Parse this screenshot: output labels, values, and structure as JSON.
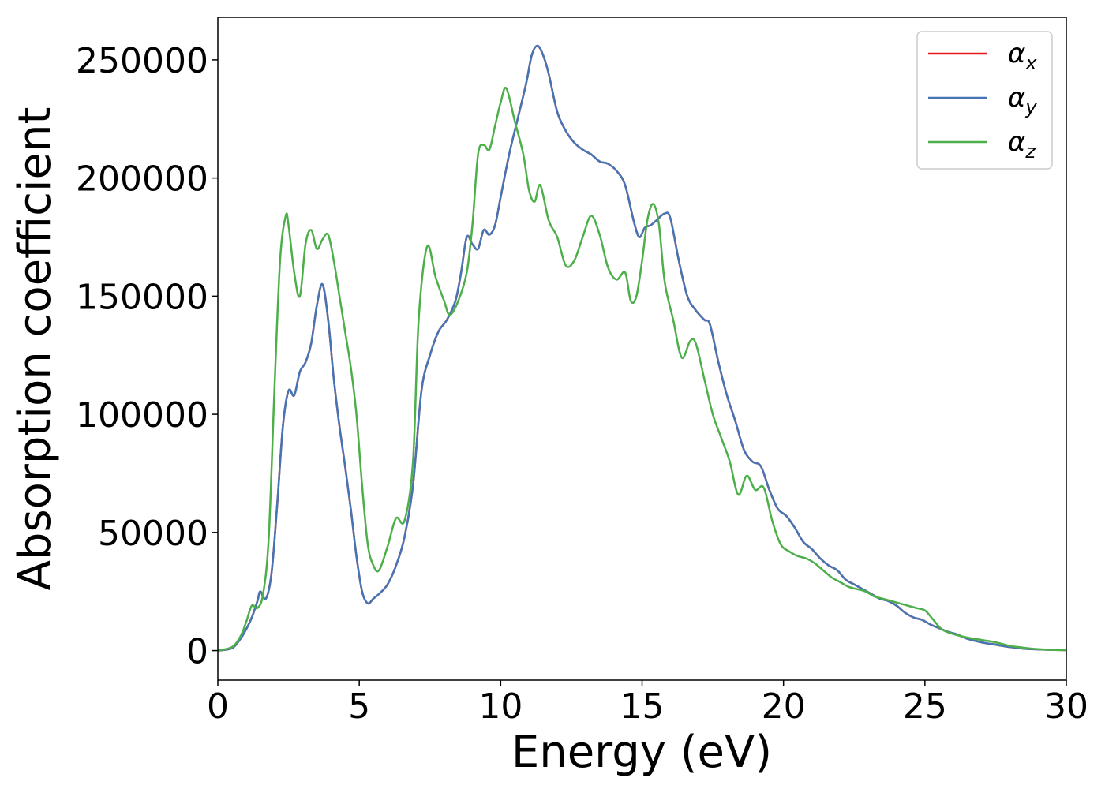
{
  "chart_data": {
    "type": "line",
    "xlabel": "Energy (eV)",
    "ylabel": "Absorption coefficient",
    "xlim": [
      0,
      30
    ],
    "ylim": [
      -12500,
      268000
    ],
    "xticks": [
      0,
      5,
      10,
      15,
      20,
      25,
      30
    ],
    "yticks": [
      0,
      50000,
      100000,
      150000,
      200000,
      250000
    ],
    "grid": false,
    "legend_position": "top-right",
    "series": [
      {
        "name": "αx",
        "legend_base": "α",
        "legend_sub": "x",
        "color": "#e41a1c",
        "x": [
          0,
          0.5,
          0.8,
          1.0,
          1.2,
          1.4,
          1.5,
          1.7,
          1.9,
          2.1,
          2.3,
          2.5,
          2.7,
          2.9,
          3.1,
          3.3,
          3.5,
          3.7,
          3.9,
          4.1,
          4.3,
          4.5,
          4.7,
          4.9,
          5.1,
          5.3,
          5.5,
          5.7,
          6.0,
          6.3,
          6.6,
          6.9,
          7.2,
          7.5,
          7.8,
          8.1,
          8.4,
          8.6,
          8.8,
          9.0,
          9.2,
          9.4,
          9.6,
          9.8,
          10.0,
          10.3,
          10.6,
          10.9,
          11.1,
          11.3,
          11.5,
          11.7,
          12.0,
          12.3,
          12.6,
          12.9,
          13.2,
          13.5,
          13.8,
          14.1,
          14.4,
          14.7,
          14.9,
          15.1,
          15.3,
          15.5,
          15.8,
          16.0,
          16.3,
          16.6,
          16.9,
          17.2,
          17.4,
          17.7,
          18.0,
          18.3,
          18.6,
          18.9,
          19.2,
          19.5,
          19.8,
          20.1,
          20.4,
          20.7,
          21.0,
          21.3,
          21.6,
          21.9,
          22.2,
          22.5,
          22.8,
          23.1,
          23.4,
          23.7,
          24.0,
          24.3,
          24.6,
          24.9,
          25.2,
          25.5,
          25.8,
          26.1,
          26.5,
          27.0,
          27.5,
          28.0,
          28.5,
          29.0,
          29.5,
          30.0
        ],
        "y": [
          0,
          1000,
          5000,
          9000,
          14000,
          21000,
          25000,
          22000,
          33000,
          62000,
          95000,
          110000,
          108000,
          118000,
          122000,
          130000,
          146000,
          155000,
          140000,
          115000,
          95000,
          78000,
          60000,
          40000,
          25000,
          20000,
          22000,
          24000,
          28000,
          36000,
          48000,
          70000,
          110000,
          125000,
          135000,
          140000,
          148000,
          160000,
          175000,
          172000,
          170000,
          178000,
          176000,
          180000,
          192000,
          210000,
          225000,
          240000,
          252000,
          256000,
          252000,
          244000,
          228000,
          220000,
          215000,
          212000,
          210000,
          207000,
          206000,
          203000,
          197000,
          182000,
          175000,
          179000,
          180000,
          182000,
          185000,
          183000,
          165000,
          150000,
          144000,
          140000,
          138000,
          122000,
          108000,
          97000,
          85000,
          80000,
          78000,
          68000,
          60000,
          57000,
          52000,
          46000,
          43000,
          39000,
          36000,
          34000,
          30000,
          28000,
          26000,
          24000,
          22000,
          21000,
          19000,
          16000,
          14000,
          13000,
          11000,
          9500,
          8000,
          7000,
          5000,
          3500,
          2500,
          1500,
          800,
          500,
          300,
          200
        ]
      },
      {
        "name": "αy",
        "legend_base": "α",
        "legend_sub": "y",
        "color": "#4575b4",
        "x": [
          0,
          0.5,
          0.8,
          1.0,
          1.2,
          1.4,
          1.5,
          1.7,
          1.9,
          2.1,
          2.3,
          2.5,
          2.7,
          2.9,
          3.1,
          3.3,
          3.5,
          3.7,
          3.9,
          4.1,
          4.3,
          4.5,
          4.7,
          4.9,
          5.1,
          5.3,
          5.5,
          5.7,
          6.0,
          6.3,
          6.6,
          6.9,
          7.2,
          7.5,
          7.8,
          8.1,
          8.4,
          8.6,
          8.8,
          9.0,
          9.2,
          9.4,
          9.6,
          9.8,
          10.0,
          10.3,
          10.6,
          10.9,
          11.1,
          11.3,
          11.5,
          11.7,
          12.0,
          12.3,
          12.6,
          12.9,
          13.2,
          13.5,
          13.8,
          14.1,
          14.4,
          14.7,
          14.9,
          15.1,
          15.3,
          15.5,
          15.8,
          16.0,
          16.3,
          16.6,
          16.9,
          17.2,
          17.4,
          17.7,
          18.0,
          18.3,
          18.6,
          18.9,
          19.2,
          19.5,
          19.8,
          20.1,
          20.4,
          20.7,
          21.0,
          21.3,
          21.6,
          21.9,
          22.2,
          22.5,
          22.8,
          23.1,
          23.4,
          23.7,
          24.0,
          24.3,
          24.6,
          24.9,
          25.2,
          25.5,
          25.8,
          26.1,
          26.5,
          27.0,
          27.5,
          28.0,
          28.5,
          29.0,
          29.5,
          30.0
        ],
        "y": [
          0,
          1000,
          5000,
          9000,
          14000,
          21000,
          25000,
          22000,
          33000,
          62000,
          95000,
          110000,
          108000,
          118000,
          122000,
          130000,
          146000,
          155000,
          140000,
          115000,
          95000,
          78000,
          60000,
          40000,
          25000,
          20000,
          22000,
          24000,
          28000,
          36000,
          48000,
          70000,
          110000,
          125000,
          135000,
          140000,
          148000,
          160000,
          175000,
          172000,
          170000,
          178000,
          176000,
          180000,
          192000,
          210000,
          225000,
          240000,
          252000,
          256000,
          252000,
          244000,
          228000,
          220000,
          215000,
          212000,
          210000,
          207000,
          206000,
          203000,
          197000,
          182000,
          175000,
          179000,
          180000,
          182000,
          185000,
          183000,
          165000,
          150000,
          144000,
          140000,
          138000,
          122000,
          108000,
          97000,
          85000,
          80000,
          78000,
          68000,
          60000,
          57000,
          52000,
          46000,
          43000,
          39000,
          36000,
          34000,
          30000,
          28000,
          26000,
          24000,
          22000,
          21000,
          19000,
          16000,
          14000,
          13000,
          11000,
          9500,
          8000,
          7000,
          5000,
          3500,
          2500,
          1500,
          800,
          500,
          300,
          200
        ]
      },
      {
        "name": "αz",
        "legend_base": "α",
        "legend_sub": "z",
        "color": "#4daf4a",
        "x": [
          0,
          0.5,
          0.8,
          1.0,
          1.2,
          1.4,
          1.6,
          1.8,
          2.0,
          2.2,
          2.4,
          2.5,
          2.7,
          2.9,
          3.1,
          3.3,
          3.5,
          3.7,
          3.9,
          4.1,
          4.3,
          4.5,
          4.7,
          4.9,
          5.1,
          5.3,
          5.5,
          5.7,
          6.0,
          6.3,
          6.6,
          6.9,
          7.1,
          7.4,
          7.7,
          8.0,
          8.2,
          8.5,
          8.8,
          9.0,
          9.2,
          9.4,
          9.6,
          9.8,
          10.0,
          10.2,
          10.5,
          10.8,
          11.0,
          11.2,
          11.4,
          11.7,
          12.0,
          12.3,
          12.6,
          12.9,
          13.2,
          13.5,
          13.8,
          14.1,
          14.4,
          14.6,
          14.8,
          15.0,
          15.2,
          15.4,
          15.6,
          15.8,
          16.1,
          16.4,
          16.7,
          16.9,
          17.2,
          17.5,
          17.8,
          18.1,
          18.4,
          18.7,
          19.0,
          19.3,
          19.6,
          19.9,
          20.2,
          20.5,
          20.8,
          21.1,
          21.4,
          21.7,
          22.0,
          22.3,
          22.6,
          22.9,
          23.2,
          23.5,
          23.8,
          24.1,
          24.4,
          24.7,
          25.0,
          25.3,
          25.6,
          26.0,
          26.5,
          27.0,
          27.5,
          28.0,
          28.5,
          29.0,
          29.5,
          30.0
        ],
        "y": [
          0,
          1500,
          6000,
          12000,
          19000,
          18000,
          24000,
          48000,
          110000,
          165000,
          184000,
          180000,
          160000,
          150000,
          172000,
          178000,
          170000,
          174000,
          176000,
          165000,
          150000,
          135000,
          120000,
          100000,
          70000,
          45000,
          36000,
          34000,
          44000,
          56000,
          55000,
          80000,
          140000,
          171000,
          158000,
          148000,
          142000,
          148000,
          160000,
          180000,
          210000,
          214000,
          212000,
          222000,
          232000,
          238000,
          224000,
          210000,
          195000,
          190000,
          197000,
          182000,
          175000,
          163000,
          165000,
          175000,
          184000,
          176000,
          162000,
          157000,
          160000,
          148000,
          150000,
          165000,
          183000,
          189000,
          180000,
          156000,
          140000,
          124000,
          131000,
          130000,
          115000,
          100000,
          90000,
          80000,
          66000,
          74000,
          68000,
          69000,
          55000,
          45000,
          42000,
          40000,
          39000,
          37000,
          34000,
          31000,
          29000,
          27000,
          26000,
          25000,
          23000,
          22000,
          21000,
          20000,
          19000,
          18000,
          17000,
          13000,
          9000,
          7000,
          5500,
          4500,
          3500,
          2000,
          1200,
          600,
          300,
          200
        ]
      }
    ]
  }
}
